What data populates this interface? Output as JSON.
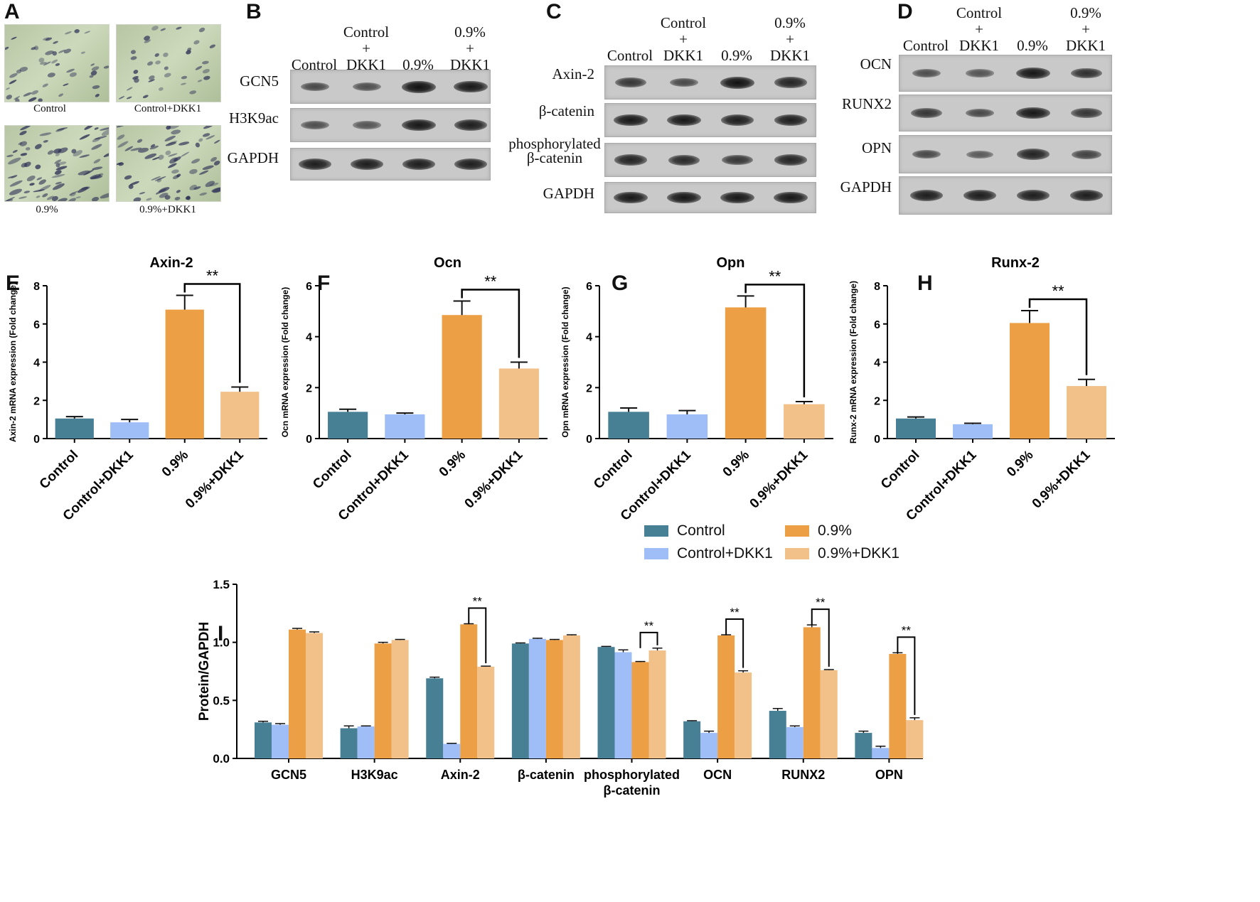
{
  "colors": {
    "control": "#477f94",
    "control_dkk1": "#9fbdf7",
    "p09": "#ec9f45",
    "p09_dkk1": "#f1c189"
  },
  "panel_A": {
    "letter": "A",
    "captions": [
      "Control",
      "Control+DKK1",
      "0.9%",
      "0.9%+DKK1"
    ]
  },
  "panel_B": {
    "letter": "B",
    "lanes": [
      {
        "l1": "",
        "l2": "",
        "l3": "Control"
      },
      {
        "l1": "Control",
        "l2": "+",
        "l3": "DKK1"
      },
      {
        "l1": "",
        "l2": "",
        "l3": "0.9%"
      },
      {
        "l1": "0.9%",
        "l2": "+",
        "l3": "DKK1"
      }
    ],
    "rows": [
      "GCN5",
      "H3K9ac",
      "GAPDH"
    ],
    "band_intensity": [
      [
        0.55,
        0.5,
        1.0,
        0.95
      ],
      [
        0.5,
        0.45,
        0.95,
        0.9
      ],
      [
        0.9,
        0.9,
        0.9,
        0.9
      ]
    ]
  },
  "panel_C": {
    "letter": "C",
    "lanes": [
      {
        "l1": "",
        "l2": "",
        "l3": "Control"
      },
      {
        "l1": "Control",
        "l2": "+",
        "l3": "DKK1"
      },
      {
        "l1": "",
        "l2": "",
        "l3": "0.9%"
      },
      {
        "l1": "0.9%",
        "l2": "+",
        "l3": "DKK1"
      }
    ],
    "rows": [
      "Axin-2",
      "β-catenin",
      "phosphorylated β-catenin",
      "GAPDH"
    ],
    "band_intensity": [
      [
        0.7,
        0.55,
        1.0,
        0.85
      ],
      [
        0.95,
        0.95,
        0.9,
        0.9
      ],
      [
        0.85,
        0.8,
        0.7,
        0.85
      ],
      [
        0.95,
        0.95,
        0.95,
        0.95
      ]
    ]
  },
  "panel_D": {
    "letter": "D",
    "lanes": [
      {
        "l1": "",
        "l2": "",
        "l3": "Control"
      },
      {
        "l1": "Control",
        "l2": "+",
        "l3": "DKK1"
      },
      {
        "l1": "",
        "l2": "",
        "l3": "0.9%"
      },
      {
        "l1": "0.9%",
        "l2": "+",
        "l3": "DKK1"
      }
    ],
    "rows": [
      "OCN",
      "RUNX2",
      "OPN",
      "GAPDH"
    ],
    "band_intensity": [
      [
        0.5,
        0.45,
        0.95,
        0.75
      ],
      [
        0.7,
        0.55,
        0.95,
        0.7
      ],
      [
        0.55,
        0.4,
        0.85,
        0.6
      ],
      [
        0.9,
        0.9,
        0.9,
        0.9
      ]
    ]
  },
  "chart_data": [
    {
      "panel": "E",
      "type": "bar",
      "title": "Axin-2",
      "ylabel": "Axin-2 mRNA expression (Fold change)",
      "categories": [
        "Control",
        "Control+DKK1",
        "0.9%",
        "0.9%+DKK1"
      ],
      "values": [
        1.05,
        0.85,
        6.75,
        2.45
      ],
      "errors": [
        0.1,
        0.15,
        0.75,
        0.25
      ],
      "ylim": [
        0,
        8
      ],
      "yticks": [
        0,
        2,
        4,
        6,
        8
      ],
      "significance": {
        "from": 2,
        "to": 3,
        "label": "**"
      }
    },
    {
      "panel": "F",
      "type": "bar",
      "title": "Ocn",
      "ylabel": "Ocn mRNA expression (Fold change)",
      "categories": [
        "Control",
        "Control+DKK1",
        "0.9%",
        "0.9%+DKK1"
      ],
      "values": [
        1.05,
        0.95,
        4.85,
        2.75
      ],
      "errors": [
        0.1,
        0.05,
        0.55,
        0.25
      ],
      "ylim": [
        0,
        6
      ],
      "yticks": [
        0,
        2,
        4,
        6
      ],
      "significance": {
        "from": 2,
        "to": 3,
        "label": "**"
      }
    },
    {
      "panel": "G",
      "type": "bar",
      "title": "Opn",
      "ylabel": "Opn mRNA expression (Fold change)",
      "categories": [
        "Control",
        "Control+DKK1",
        "0.9%",
        "0.9%+DKK1"
      ],
      "values": [
        1.05,
        0.95,
        5.15,
        1.35
      ],
      "errors": [
        0.15,
        0.15,
        0.45,
        0.1
      ],
      "ylim": [
        0,
        6
      ],
      "yticks": [
        0,
        2,
        4,
        6
      ],
      "significance": {
        "from": 2,
        "to": 3,
        "label": "**"
      }
    },
    {
      "panel": "H",
      "type": "bar",
      "title": "Runx-2",
      "ylabel": "Runx-2 mRNA expression (Fold change)",
      "categories": [
        "Control",
        "Control+DKK1",
        "0.9%",
        "0.9%+DKK1"
      ],
      "values": [
        1.05,
        0.75,
        6.05,
        2.75
      ],
      "errors": [
        0.08,
        0.05,
        0.65,
        0.35
      ],
      "ylim": [
        0,
        8
      ],
      "yticks": [
        0,
        2,
        4,
        6,
        8
      ],
      "significance": {
        "from": 2,
        "to": 3,
        "label": "**"
      }
    },
    {
      "panel": "I",
      "type": "bar",
      "ylabel": "Protein/GAPDH",
      "categories": [
        "GCN5",
        "H3K9ac",
        "Axin-2",
        "β-catenin",
        "phosphorylated β-catenin",
        "OCN",
        "RUNX2",
        "OPN"
      ],
      "ylim": [
        0,
        1.5
      ],
      "yticks": [
        0.0,
        0.5,
        1.0,
        1.5
      ],
      "series": [
        {
          "name": "Control",
          "values": [
            0.31,
            0.26,
            0.69,
            0.99,
            0.96,
            0.32,
            0.41,
            0.22
          ],
          "errors": [
            0.01,
            0.02,
            0.01,
            0.005,
            0.005,
            0.005,
            0.02,
            0.015
          ]
        },
        {
          "name": "Control+DKK1",
          "values": [
            0.29,
            0.275,
            0.125,
            1.03,
            0.915,
            0.22,
            0.27,
            0.09
          ],
          "errors": [
            0.01,
            0.005,
            0.005,
            0.005,
            0.02,
            0.015,
            0.01,
            0.015
          ]
        },
        {
          "name": "0.9%",
          "values": [
            1.11,
            0.99,
            1.155,
            1.02,
            0.83,
            1.06,
            1.13,
            0.9
          ],
          "errors": [
            0.01,
            0.01,
            0.005,
            0.005,
            0.005,
            0.005,
            0.02,
            0.01
          ]
        },
        {
          "name": "0.9%+DKK1",
          "values": [
            1.08,
            1.02,
            0.79,
            1.06,
            0.93,
            0.74,
            0.76,
            0.33
          ],
          "errors": [
            0.01,
            0.005,
            0.005,
            0.005,
            0.02,
            0.015,
            0.005,
            0.02
          ]
        }
      ],
      "significance_groups": [
        2,
        4,
        5,
        6,
        7
      ],
      "significance_label": "**"
    }
  ],
  "legend": [
    "Control",
    "0.9%",
    "Control+DKK1",
    "0.9%+DKK1"
  ]
}
